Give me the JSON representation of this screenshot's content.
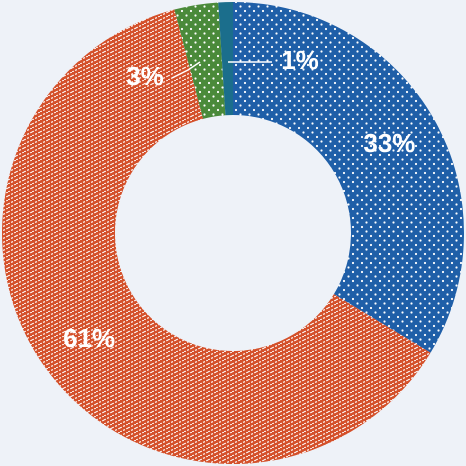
{
  "chart_data": {
    "type": "donut",
    "values": [
      33,
      61,
      3,
      1
    ],
    "value_labels": [
      "33%",
      "61%",
      "3%",
      "1%"
    ],
    "colors": [
      "#1f5fa8",
      "#d4502a",
      "#4a8a3a",
      "#1b6e8c"
    ]
  }
}
